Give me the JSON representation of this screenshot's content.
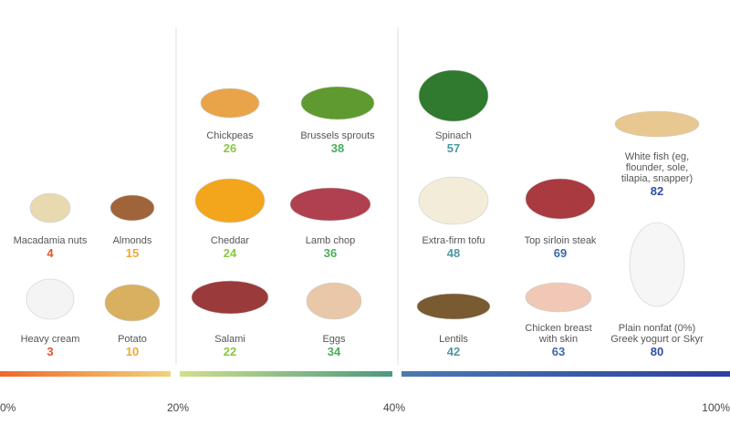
{
  "items": [
    {
      "name": [
        "Macadamia nuts"
      ],
      "value": 4,
      "color": "#e8532a"
    },
    {
      "name": [
        "Almonds"
      ],
      "value": 15,
      "color": "#f0a830"
    },
    {
      "name": [
        "Heavy cream"
      ],
      "value": 3,
      "color": "#e8532a"
    },
    {
      "name": [
        "Potato"
      ],
      "value": 10,
      "color": "#f0a830"
    },
    {
      "name": [
        "Chickpeas"
      ],
      "value": 26,
      "color": "#8cc63f"
    },
    {
      "name": [
        "Brussels sprouts"
      ],
      "value": 38,
      "color": "#4aae5a"
    },
    {
      "name": [
        "Cheddar"
      ],
      "value": 24,
      "color": "#8cc63f"
    },
    {
      "name": [
        "Lamb chop"
      ],
      "value": 36,
      "color": "#4aae5a"
    },
    {
      "name": [
        "Salami"
      ],
      "value": 22,
      "color": "#8cc63f"
    },
    {
      "name": [
        "Eggs"
      ],
      "value": 34,
      "color": "#4aae5a"
    },
    {
      "name": [
        "Spinach"
      ],
      "value": 57,
      "color": "#4a9aa0"
    },
    {
      "name": [
        "White fish (eg,",
        "flounder, sole,",
        "tilapia, snapper)"
      ],
      "value": 82,
      "color": "#2d4fa0"
    },
    {
      "name": [
        "Extra-firm tofu"
      ],
      "value": 48,
      "color": "#4a9aa0"
    },
    {
      "name": [
        "Top sirloin steak"
      ],
      "value": 69,
      "color": "#3a6aa8"
    },
    {
      "name": [
        "Lentils"
      ],
      "value": 42,
      "color": "#4a9aa0"
    },
    {
      "name": [
        "Chicken breast",
        "with skin"
      ],
      "value": 63,
      "color": "#3a6aa8"
    },
    {
      "name": [
        "Plain nonfat (0%)",
        "Greek yogurt or Skyr"
      ],
      "value": 80,
      "color": "#2d4fa0"
    }
  ],
  "scale": [
    "0%",
    "20%",
    "40%",
    "100%"
  ]
}
